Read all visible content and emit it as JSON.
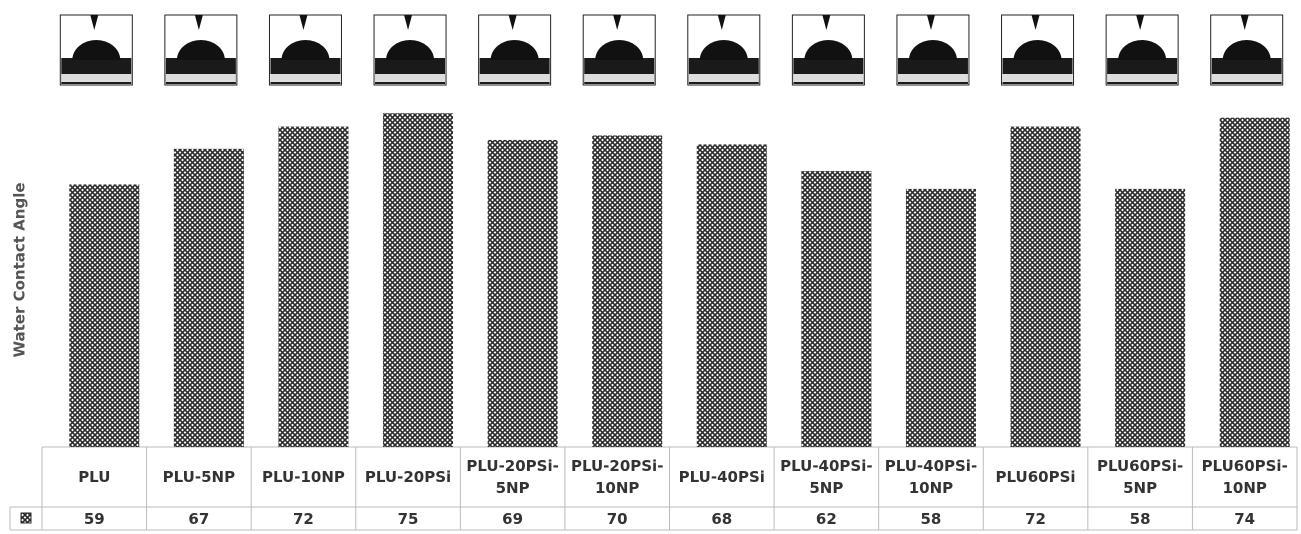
{
  "chart_data": {
    "type": "bar",
    "y_label": "Water Contact Angle",
    "categories": [
      "PLU",
      "PLU-5NP",
      "PLU-10NP",
      "PLU-20PSi",
      "PLU-20PSi-5NP",
      "PLU-20PSi-10NP",
      "PLU-40PSi",
      "PLU-40PSi-5NP",
      "PLU-40PSi-10NP",
      "PLU60PSi",
      "PLU60PSi-5NP",
      "PLU60PSi-10NP"
    ],
    "values": [
      59,
      67,
      72,
      75,
      69,
      70,
      68,
      62,
      58,
      72,
      58,
      74
    ],
    "color": "#2b2b2b",
    "ylim": [
      0,
      100
    ]
  }
}
